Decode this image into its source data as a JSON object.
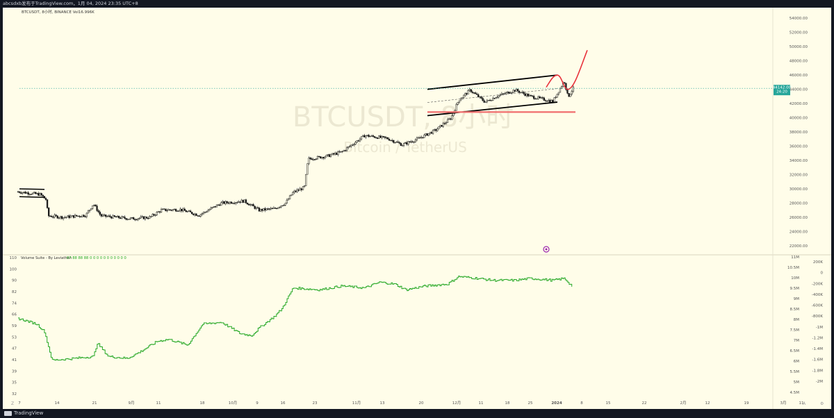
{
  "header": {
    "publish_note": "abcsdxb发布于TradingView.com，1月 04, 2024 23:35 UTC+8"
  },
  "legend": {
    "symbol_line": "BTCUSDT, 8小时, BINANCE  Vol16.996K",
    "volume_indicator": "Volume Suite - By Leviathan",
    "volume_values": "87  88  88  88  0  0  0  0  0  0  0  0  0  0  0"
  },
  "watermark": {
    "main": "BTCUSDT, 8小时",
    "sub": "Bitcoin / TetherUS"
  },
  "price_label": {
    "price": "44142.00",
    "countdown": "24:20"
  },
  "footer": {
    "brand": "TradingView"
  },
  "colors": {
    "background": "#fffde9",
    "frame": "#131722",
    "candle": "#1a1a1a",
    "volume_line": "#26a826",
    "price_tag": "#26a69a",
    "channel": "#000000",
    "support": "#f06d6d",
    "projection": "#e8313a",
    "dotted_price": "#26a69a",
    "axis_text": "#555555"
  },
  "chart_data": [
    {
      "type": "candlestick",
      "title": "BTCUSDT, 8小时, BINANCE",
      "y_ticks": [
        "54000.00",
        "52000.00",
        "50000.00",
        "48000.00",
        "46000.00",
        "44000.00",
        "42000.00",
        "40000.00",
        "38000.00",
        "36000.00",
        "34000.00",
        "32000.00",
        "30000.00",
        "28000.00",
        "26000.00",
        "24000.00",
        "22000.00"
      ],
      "ylim": [
        21600,
        55000
      ],
      "x_ticks": [
        "7",
        "14",
        "21",
        "9月",
        "11",
        "18",
        "10月",
        "9",
        "16",
        "23",
        "11月",
        "13",
        "20",
        "12月",
        "11",
        "18",
        "25",
        "2024",
        "8",
        "15",
        "22",
        "2月",
        "12",
        "19",
        "3月",
        "11"
      ],
      "approx_close_path": [
        [
          0,
          29600
        ],
        [
          0.03,
          29200
        ],
        [
          0.037,
          28500
        ],
        [
          0.04,
          26200
        ],
        [
          0.06,
          26000
        ],
        [
          0.09,
          26300
        ],
        [
          0.1,
          27900
        ],
        [
          0.11,
          26200
        ],
        [
          0.15,
          25800
        ],
        [
          0.175,
          26000
        ],
        [
          0.19,
          27000
        ],
        [
          0.215,
          27100
        ],
        [
          0.24,
          26300
        ],
        [
          0.27,
          28000
        ],
        [
          0.3,
          28300
        ],
        [
          0.32,
          27000
        ],
        [
          0.34,
          27200
        ],
        [
          0.355,
          28000
        ],
        [
          0.365,
          29500
        ],
        [
          0.38,
          30200
        ],
        [
          0.385,
          34200
        ],
        [
          0.41,
          34600
        ],
        [
          0.43,
          35200
        ],
        [
          0.46,
          37500
        ],
        [
          0.49,
          37100
        ],
        [
          0.51,
          36200
        ],
        [
          0.53,
          37000
        ],
        [
          0.555,
          38300
        ],
        [
          0.575,
          40000
        ],
        [
          0.585,
          42500
        ],
        [
          0.6,
          43900
        ],
        [
          0.62,
          42200
        ],
        [
          0.635,
          43000
        ],
        [
          0.66,
          43900
        ],
        [
          0.68,
          43000
        ],
        [
          0.71,
          42300
        ],
        [
          0.725,
          45200
        ],
        [
          0.73,
          42900
        ],
        [
          0.737,
          44142
        ]
      ],
      "channel_upper": [
        [
          41,
          44000
        ],
        [
          46,
          46000
        ]
      ],
      "channel_lower": [
        [
          41,
          40300
        ],
        [
          46,
          42200
        ]
      ],
      "support_level": 40800,
      "projection_path": [
        [
          44300
        ],
        [
          46000
        ],
        [
          44000
        ],
        [
          49500
        ]
      ],
      "left_range_top": 30000,
      "left_range_bottom": 28900
    },
    {
      "type": "line",
      "title": "Volume Suite - By Leviathan",
      "y_ticks_left": [
        "110",
        "100",
        "90",
        "82",
        "74",
        "66",
        "59",
        "53",
        "47",
        "41",
        "39",
        "35",
        "32"
      ],
      "y_ticks_right_1": [
        "11M",
        "10.5M",
        "10M",
        "9.5M",
        "9M",
        "8.5M",
        "8M",
        "7.5M",
        "7M",
        "6.5M",
        "6M",
        "5.5M",
        "5M",
        "4.5M"
      ],
      "y_ticks_right_2": [
        "200K",
        "0",
        "-200K",
        "-400K",
        "-600K",
        "-800K",
        "-1M",
        "-1.2M",
        "-1.4M",
        "-1.6M",
        "-1.8M",
        "-2M"
      ],
      "ylim": [
        4.2,
        11.2
      ],
      "approx_values": [
        [
          0,
          8.3
        ],
        [
          0.025,
          8.0
        ],
        [
          0.035,
          7.6
        ],
        [
          0.045,
          6.1
        ],
        [
          0.075,
          6.2
        ],
        [
          0.1,
          6.3
        ],
        [
          0.105,
          7.0
        ],
        [
          0.12,
          6.3
        ],
        [
          0.145,
          6.2
        ],
        [
          0.16,
          6.5
        ],
        [
          0.185,
          7.1
        ],
        [
          0.2,
          7.2
        ],
        [
          0.225,
          6.9
        ],
        [
          0.245,
          8.0
        ],
        [
          0.27,
          8.1
        ],
        [
          0.295,
          7.5
        ],
        [
          0.31,
          7.4
        ],
        [
          0.32,
          7.8
        ],
        [
          0.34,
          8.4
        ],
        [
          0.35,
          8.8
        ],
        [
          0.365,
          9.9
        ],
        [
          0.4,
          9.8
        ],
        [
          0.43,
          10.0
        ],
        [
          0.46,
          9.9
        ],
        [
          0.48,
          10.2
        ],
        [
          0.5,
          10.1
        ],
        [
          0.515,
          9.8
        ],
        [
          0.54,
          10.0
        ],
        [
          0.57,
          10.1
        ],
        [
          0.585,
          10.5
        ],
        [
          0.61,
          10.4
        ],
        [
          0.63,
          10.3
        ],
        [
          0.66,
          10.3
        ],
        [
          0.68,
          10.4
        ],
        [
          0.71,
          10.3
        ],
        [
          0.725,
          10.4
        ],
        [
          0.735,
          10.0
        ]
      ]
    }
  ]
}
